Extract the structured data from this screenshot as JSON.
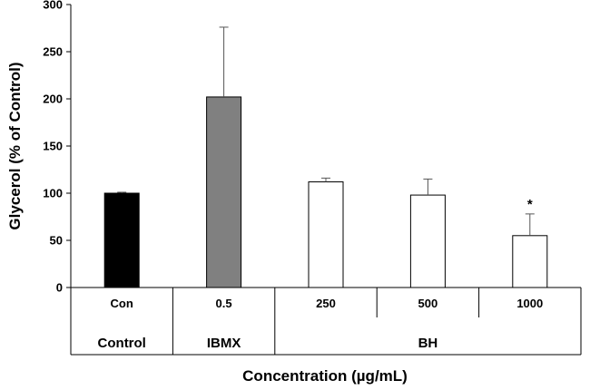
{
  "chart_data": {
    "type": "bar",
    "categories": [
      "Con",
      "0.5",
      "250",
      "500",
      "1000"
    ],
    "groups": [
      "Control",
      "IBMX",
      "BH"
    ],
    "values": [
      100,
      202,
      112,
      98,
      55
    ],
    "errors": [
      1,
      74,
      4,
      17,
      23
    ],
    "significance": [
      "",
      "",
      "",
      "",
      "*"
    ],
    "colors": [
      "#000000",
      "#808080",
      "#ffffff",
      "#ffffff",
      "#ffffff"
    ],
    "xlabel": "Concentration (µg/mL)",
    "ylabel": "Glycerol (% of Control)",
    "ylim": [
      0,
      300
    ],
    "yticks": [
      0,
      50,
      100,
      150,
      200,
      250,
      300
    ],
    "grid": false
  }
}
